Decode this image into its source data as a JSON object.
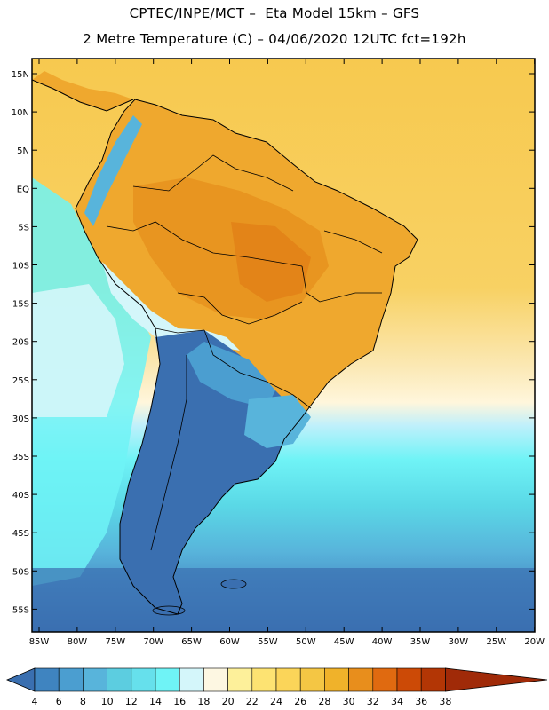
{
  "title_line1": "CPTEC/INPE/MCT –  Eta Model 15km – GFS",
  "title_line2": "2 Metre Temperature (C) – 04/06/2020 12UTC fct=192h",
  "lat_labels": [
    "15N",
    "10N",
    "5N",
    "EQ",
    "5S",
    "10S",
    "15S",
    "20S",
    "25S",
    "30S",
    "35S",
    "40S",
    "45S",
    "50S",
    "55S"
  ],
  "lon_labels": [
    "85W",
    "80W",
    "75W",
    "70W",
    "65W",
    "60W",
    "55W",
    "50W",
    "45W",
    "40W",
    "35W",
    "30W",
    "25W",
    "20W"
  ],
  "colorbar": {
    "labels": [
      "4",
      "6",
      "8",
      "10",
      "12",
      "14",
      "16",
      "18",
      "20",
      "22",
      "24",
      "26",
      "28",
      "30",
      "32",
      "34",
      "36",
      "38"
    ],
    "colors": [
      "#3a6fb0",
      "#3f84c0",
      "#4b9ed0",
      "#58b4db",
      "#5ccde0",
      "#66e0ec",
      "#6ff3f6",
      "#d4f6fa",
      "#fdf7e2",
      "#fdf09a",
      "#fde372",
      "#fbd559",
      "#f4c644",
      "#f0b22a",
      "#e88e1c",
      "#e06a10",
      "#cc4a06",
      "#b33605",
      "#a02a08"
    ]
  },
  "map": {
    "ocean_color": "#f5ce5a",
    "land_colors": [
      "#efa82e",
      "#2f6aad",
      "#5bd3e2"
    ]
  }
}
